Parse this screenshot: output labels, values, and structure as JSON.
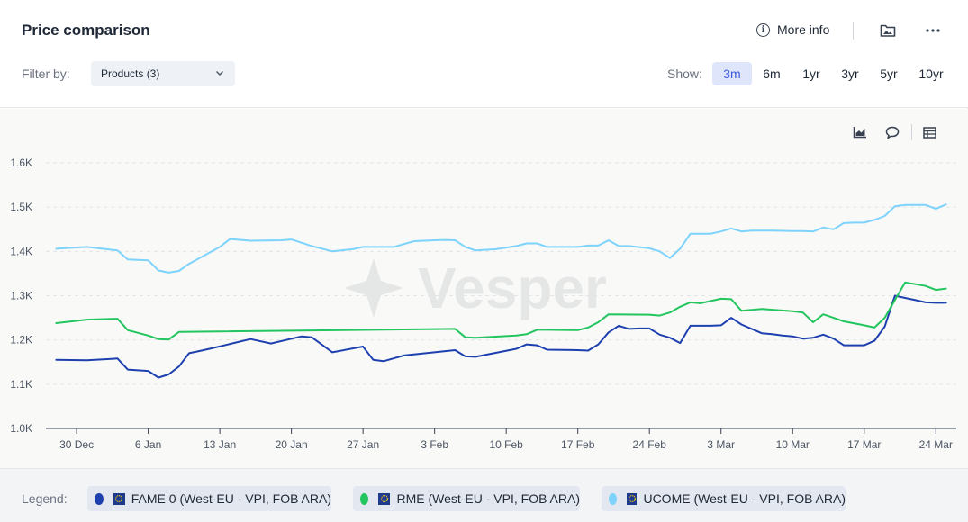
{
  "header": {
    "title": "Price comparison",
    "more_info_label": "More info",
    "filter_label": "Filter by:",
    "filter_value": "Products (3)",
    "show_label": "Show:",
    "ranges": [
      "3m",
      "6m",
      "1yr",
      "3yr",
      "5yr",
      "10yr"
    ],
    "active_range": "3m"
  },
  "icons": {
    "info": "info-icon",
    "save": "image-folder-icon",
    "more": "more-horizontal-icon",
    "chart_type": "area-chart-icon",
    "comments": "comment-icon",
    "table": "table-icon"
  },
  "watermark": "Vesper",
  "legend": {
    "label": "Legend:",
    "items": [
      {
        "name": "FAME 0 (West-EU - VPI, FOB ARA)",
        "color": "#1e40af"
      },
      {
        "name": "RME (West-EU - VPI, FOB ARA)",
        "color": "#22c55e"
      },
      {
        "name": "UCOME (West-EU - VPI, FOB ARA)",
        "color": "#7dd3fc"
      }
    ]
  },
  "chart_data": {
    "type": "line",
    "y_ticks": [
      "1.0K",
      "1.1K",
      "1.2K",
      "1.3K",
      "1.4K",
      "1.5K",
      "1.6K"
    ],
    "ylim": [
      1000,
      1600
    ],
    "x_tick_labels": [
      "30 Dec",
      "6 Jan",
      "13 Jan",
      "20 Jan",
      "27 Jan",
      "3 Feb",
      "10 Feb",
      "17 Feb",
      "24 Feb",
      "3 Mar",
      "10 Mar",
      "17 Mar",
      "24 Mar"
    ],
    "x_tick_days": [
      30,
      37,
      44,
      51,
      58,
      65,
      72,
      79,
      86,
      93,
      100,
      107,
      114
    ],
    "x_axis": "days counted from 1 Dec",
    "xlim": [
      27,
      116
    ],
    "grid": "horizontal dashed",
    "series": [
      {
        "name": "FAME 0 (West-EU - VPI, FOB ARA)",
        "color": "#1e40af",
        "x": [
          28,
          31,
          34,
          35,
          37,
          38,
          39,
          40,
          41,
          42,
          43,
          47,
          49,
          52,
          53,
          55,
          58,
          59,
          60,
          62,
          67,
          68,
          69,
          73,
          74,
          75,
          76,
          79,
          80,
          81,
          82,
          83,
          84,
          85,
          86,
          87,
          88,
          89,
          90,
          92,
          93,
          94,
          95,
          96,
          97,
          98,
          99,
          100,
          101,
          102,
          103,
          104,
          105,
          106,
          107,
          108,
          109,
          110,
          111,
          112,
          113,
          114,
          115
        ],
        "y": [
          1155,
          1154,
          1158,
          1133,
          1130,
          1115,
          1122,
          1140,
          1170,
          1175,
          1180,
          1202,
          1192,
          1208,
          1206,
          1172,
          1185,
          1155,
          1152,
          1165,
          1177,
          1163,
          1162,
          1180,
          1190,
          1188,
          1178,
          1177,
          1176,
          1190,
          1217,
          1232,
          1225,
          1226,
          1226,
          1212,
          1205,
          1193,
          1232,
          1232,
          1233,
          1250,
          1235,
          1225,
          1215,
          1213,
          1210,
          1208,
          1203,
          1205,
          1212,
          1203,
          1188,
          1188,
          1188,
          1198,
          1230,
          1300,
          1295,
          1290,
          1285,
          1284,
          1284
        ]
      },
      {
        "name": "RME (West-EU - VPI, FOB ARA)",
        "color": "#22c55e",
        "x": [
          28,
          31,
          34,
          35,
          37,
          38,
          39,
          40,
          67,
          68,
          69,
          73,
          74,
          75,
          76,
          79,
          80,
          81,
          82,
          86,
          87,
          88,
          89,
          90,
          91,
          93,
          94,
          95,
          97,
          100,
          101,
          102,
          103,
          104,
          105,
          107,
          108,
          109,
          110,
          111,
          112,
          113,
          114,
          115
        ],
        "y": [
          1238,
          1246,
          1248,
          1222,
          1210,
          1202,
          1201,
          1218,
          1225,
          1206,
          1205,
          1210,
          1213,
          1223,
          1223,
          1222,
          1228,
          1240,
          1258,
          1257,
          1255,
          1262,
          1275,
          1285,
          1283,
          1293,
          1292,
          1266,
          1270,
          1265,
          1262,
          1240,
          1258,
          1250,
          1242,
          1233,
          1228,
          1250,
          1290,
          1330,
          1326,
          1322,
          1313,
          1316
        ]
      },
      {
        "name": "UCOME (West-EU - VPI, FOB ARA)",
        "color": "#7dd3fc",
        "x": [
          28,
          31,
          34,
          35,
          37,
          38,
          39,
          40,
          41,
          44,
          45,
          47,
          50,
          51,
          53,
          55,
          57,
          58,
          61,
          63,
          65,
          66,
          67,
          68,
          69,
          71,
          73,
          74,
          75,
          76,
          79,
          80,
          81,
          82,
          83,
          84,
          86,
          87,
          88,
          89,
          90,
          91,
          92,
          93,
          94,
          95,
          96,
          97,
          98,
          100,
          101,
          102,
          103,
          104,
          105,
          106,
          107,
          108,
          109,
          110,
          111,
          112,
          113,
          114,
          115
        ],
        "y": [
          1406,
          1410,
          1402,
          1382,
          1380,
          1357,
          1352,
          1356,
          1372,
          1410,
          1428,
          1424,
          1425,
          1427,
          1412,
          1400,
          1405,
          1410,
          1410,
          1423,
          1425,
          1426,
          1425,
          1410,
          1402,
          1405,
          1412,
          1418,
          1418,
          1410,
          1410,
          1413,
          1413,
          1425,
          1412,
          1412,
          1407,
          1400,
          1385,
          1406,
          1440,
          1440,
          1440,
          1445,
          1452,
          1445,
          1447,
          1447,
          1447,
          1446,
          1446,
          1445,
          1454,
          1450,
          1464,
          1465,
          1465,
          1471,
          1480,
          1502,
          1505,
          1505,
          1505,
          1496,
          1506
        ]
      }
    ]
  }
}
